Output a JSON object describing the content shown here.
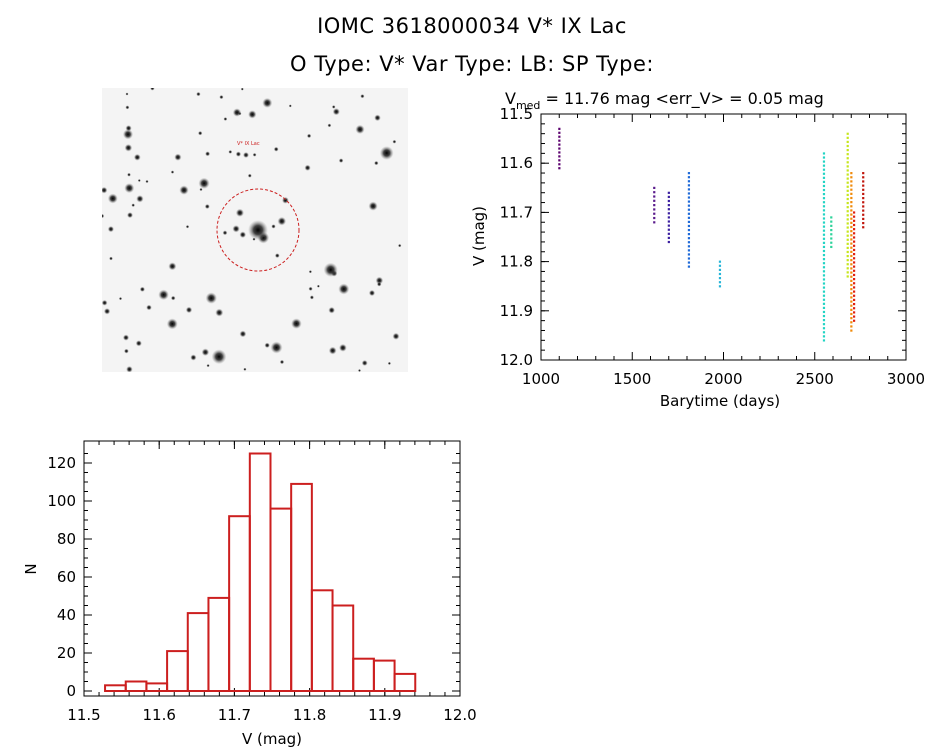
{
  "header": {
    "title_line1": "IOMC 3618000034    V* IX Lac",
    "title_line2": "O Type: V*   Var Type: LB:   SP Type:"
  },
  "colors": {
    "histogram": "#cc1f1f",
    "stamp_circle": "#cc1f1f"
  },
  "lightcurve": {
    "annotation_prefix": "V",
    "annotation_sub": "med",
    "annotation_rest": " = 11.76 mag <err_V> = 0.05 mag",
    "xlabel": "Barytime (days)",
    "ylabel": "V (mag)"
  },
  "chart_data": [
    {
      "type": "scatter",
      "xlabel": "Barytime (days)",
      "ylabel": "V (mag)",
      "xlim": [
        1000,
        3000
      ],
      "ylim": [
        12.0,
        11.5
      ],
      "y_inverted": true,
      "x_ticks": [
        1000,
        1500,
        2000,
        2500,
        3000
      ],
      "y_ticks": [
        11.5,
        11.6,
        11.7,
        11.8,
        11.9,
        12.0
      ],
      "groups": [
        {
          "x": 1100,
          "y_range": [
            11.53,
            11.61
          ],
          "color": "#5b006e"
        },
        {
          "x": 1620,
          "y_range": [
            11.65,
            11.72
          ],
          "color": "#5a1a8c"
        },
        {
          "x": 1700,
          "y_range": [
            11.66,
            11.76
          ],
          "color": "#3b1fa0"
        },
        {
          "x": 1810,
          "y_range": [
            11.62,
            11.81
          ],
          "color": "#1f6ad8"
        },
        {
          "x": 1980,
          "y_range": [
            11.8,
            11.85
          ],
          "color": "#27b5d8"
        },
        {
          "x": 2550,
          "y_range": [
            11.58,
            11.96
          ],
          "color": "#22d4c4"
        },
        {
          "x": 2590,
          "y_range": [
            11.71,
            11.77
          ],
          "color": "#2ed39a"
        },
        {
          "x": 2680,
          "y_range": [
            11.54,
            11.83
          ],
          "color": "#c6e61c"
        },
        {
          "x": 2700,
          "y_range": [
            11.62,
            11.94
          ],
          "color": "#f08a0a"
        },
        {
          "x": 2715,
          "y_range": [
            11.7,
            11.92
          ],
          "color": "#e0200e"
        },
        {
          "x": 2765,
          "y_range": [
            11.62,
            11.73
          ],
          "color": "#c0140a"
        }
      ]
    },
    {
      "type": "bar",
      "xlabel": "V (mag)",
      "ylabel": "N",
      "xlim": [
        11.5,
        12.0
      ],
      "ylim": [
        0,
        130
      ],
      "x_ticks": [
        11.5,
        11.6,
        11.7,
        11.8,
        11.9,
        12.0
      ],
      "y_ticks": [
        0,
        20,
        40,
        60,
        80,
        100,
        120
      ],
      "bin_width": 0.0275,
      "bin_starts": [
        11.528,
        11.5555,
        11.583,
        11.6105,
        11.638,
        11.6655,
        11.693,
        11.7205,
        11.748,
        11.7755,
        11.803,
        11.8305,
        11.858,
        11.8855,
        11.913,
        11.9405
      ],
      "values": [
        3,
        5,
        4,
        21,
        41,
        49,
        92,
        125,
        96,
        109,
        53,
        45,
        17,
        16,
        9,
        0
      ]
    }
  ]
}
